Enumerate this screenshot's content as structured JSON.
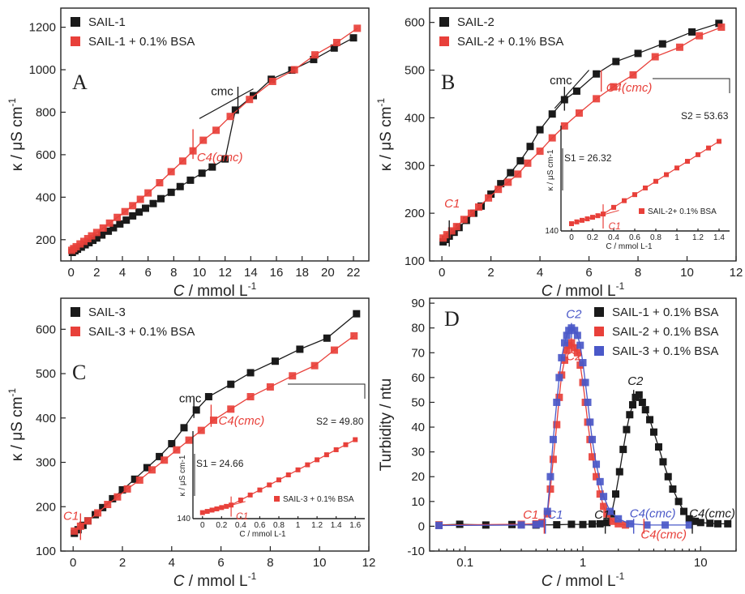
{
  "colors": {
    "black": "#1a1a1a",
    "red": "#e8403a",
    "blue": "#4a58c8",
    "axis": "#222222"
  },
  "chart_data": [
    {
      "panel": "A",
      "type": "scatter",
      "xlabel": "C / mmol L-1",
      "ylabel": "κ / μS cm-1",
      "xlim": [
        -0.8,
        23.2
      ],
      "ylim": [
        100,
        1290
      ],
      "xticks": [
        0,
        2,
        4,
        6,
        8,
        10,
        12,
        14,
        16,
        18,
        20,
        22
      ],
      "yticks": [
        200,
        400,
        600,
        800,
        1000,
        1200
      ],
      "legend": "top-left",
      "series": [
        {
          "name": "SAIL-1",
          "color": "black",
          "x": [
            0.1,
            0.3,
            0.5,
            0.8,
            1.1,
            1.4,
            1.7,
            2.0,
            2.4,
            2.9,
            3.3,
            3.8,
            4.3,
            4.8,
            5.3,
            5.8,
            6.4,
            7.0,
            7.8,
            8.5,
            9.3,
            10.2,
            11.0,
            12.0,
            12.8,
            14.2,
            15.6,
            17.2,
            18.9,
            20.5,
            22.0
          ],
          "y": [
            140,
            148,
            155,
            165,
            176,
            186,
            197,
            208,
            222,
            240,
            256,
            274,
            292,
            312,
            330,
            348,
            370,
            393,
            423,
            450,
            480,
            513,
            542,
            580,
            810,
            878,
            955,
            998,
            1048,
            1102,
            1150
          ]
        },
        {
          "name": "SAIL-1 + 0.1% BSA",
          "color": "red",
          "x": [
            0.05,
            0.2,
            0.4,
            0.7,
            1.0,
            1.3,
            1.6,
            2.0,
            2.5,
            3.0,
            3.6,
            4.2,
            4.8,
            5.4,
            6.0,
            6.9,
            7.8,
            8.7,
            9.5,
            10.3,
            11.3,
            12.4,
            13.9,
            15.7,
            17.4,
            19.0,
            20.7,
            22.3
          ],
          "y": [
            150,
            158,
            167,
            180,
            192,
            205,
            218,
            234,
            255,
            278,
            305,
            332,
            360,
            390,
            420,
            468,
            520,
            570,
            618,
            668,
            715,
            780,
            860,
            945,
            1000,
            1070,
            1128,
            1195
          ]
        }
      ],
      "annotations": [
        {
          "text": "cmc",
          "x": 13.0,
          "y": 862
        },
        {
          "text": "C4(cmc)",
          "x": 9.5,
          "y": 660
        }
      ]
    },
    {
      "panel": "B",
      "type": "scatter",
      "xlabel": "C / mmol L-1",
      "ylabel": "κ / μS cm-1",
      "xlim": [
        -0.5,
        12
      ],
      "ylim": [
        100,
        630
      ],
      "xticks": [
        0,
        2,
        4,
        6,
        8,
        10,
        12
      ],
      "yticks": [
        100,
        200,
        300,
        400,
        500,
        600
      ],
      "legend": "top-left",
      "series": [
        {
          "name": "SAIL-2",
          "color": "black",
          "x": [
            0.05,
            0.15,
            0.3,
            0.5,
            0.7,
            1.0,
            1.3,
            1.6,
            2.0,
            2.4,
            2.8,
            3.2,
            3.6,
            4.0,
            4.5,
            5.0,
            5.5,
            6.3,
            7.1,
            8.0,
            9.0,
            10.2,
            11.3
          ],
          "y": [
            140,
            145,
            152,
            160,
            170,
            185,
            200,
            215,
            240,
            262,
            285,
            310,
            340,
            375,
            408,
            438,
            456,
            492,
            518,
            535,
            555,
            580,
            598
          ]
        },
        {
          "name": "SAIL-2 + 0.1% BSA",
          "color": "red",
          "x": [
            0.05,
            0.2,
            0.4,
            0.6,
            0.9,
            1.2,
            1.5,
            1.9,
            2.3,
            2.7,
            3.1,
            3.5,
            4.0,
            4.5,
            5.0,
            5.6,
            6.3,
            7.0,
            7.8,
            8.7,
            9.7,
            10.5,
            11.4
          ],
          "y": [
            148,
            155,
            163,
            172,
            187,
            200,
            213,
            232,
            250,
            265,
            282,
            305,
            330,
            358,
            383,
            410,
            440,
            465,
            490,
            528,
            548,
            572,
            590
          ]
        }
      ],
      "annotations": [
        {
          "text": "cmc",
          "x": 5.0,
          "y": 445
        },
        {
          "text": "C4(cmc)",
          "x": 6.4,
          "y": 478
        },
        {
          "text": "C1",
          "x": 0.3,
          "y": 155
        }
      ],
      "inset": {
        "xlabel": "C / mmol L-1",
        "ylabel": "κ / μS cm-1",
        "xticks": [
          0.0,
          0.2,
          0.4,
          0.6,
          0.8,
          1.0,
          1.2,
          1.4
        ],
        "ytick_label": "140",
        "legend": "SAIL-2+ 0.1% BSA",
        "s1": "S1 = 26.32",
        "s2": "S2 = 53.63",
        "c1": "C1",
        "series": {
          "x": [
            0.0,
            0.05,
            0.1,
            0.15,
            0.2,
            0.25,
            0.3,
            0.4,
            0.5,
            0.6,
            0.7,
            0.8,
            0.9,
            1.0,
            1.1,
            1.2,
            1.3,
            1.4
          ],
          "y": [
            144,
            145.5,
            146.8,
            148,
            149.3,
            150.6,
            152,
            157.5,
            163,
            168,
            173.5,
            179,
            184.5,
            190,
            195.5,
            201,
            206.5,
            212
          ]
        }
      }
    },
    {
      "panel": "C",
      "type": "scatter",
      "xlabel": "C / mmol L-1",
      "ylabel": "κ / μS cm-1",
      "xlim": [
        -0.5,
        12
      ],
      "ylim": [
        100,
        670
      ],
      "xticks": [
        0,
        2,
        4,
        6,
        8,
        10,
        12
      ],
      "yticks": [
        100,
        200,
        300,
        400,
        500,
        600
      ],
      "legend": "top-left",
      "series": [
        {
          "name": "SAIL-3",
          "color": "black",
          "x": [
            0.05,
            0.2,
            0.4,
            0.6,
            0.9,
            1.2,
            1.6,
            2.0,
            2.5,
            3.0,
            3.5,
            4.0,
            4.5,
            5.0,
            5.5,
            6.4,
            7.2,
            8.2,
            9.2,
            10.3,
            11.5
          ],
          "y": [
            140,
            148,
            158,
            168,
            182,
            198,
            218,
            238,
            262,
            288,
            313,
            342,
            378,
            418,
            448,
            476,
            502,
            528,
            555,
            580,
            635
          ]
        },
        {
          "name": "SAIL-3 + 0.1% BSA",
          "color": "red",
          "x": [
            0.05,
            0.3,
            0.6,
            1.0,
            1.4,
            1.8,
            2.2,
            2.7,
            3.2,
            3.7,
            4.2,
            4.7,
            5.2,
            5.7,
            6.4,
            7.2,
            8.0,
            8.9,
            9.8,
            10.6,
            11.4
          ],
          "y": [
            145,
            156,
            168,
            186,
            205,
            222,
            240,
            260,
            283,
            305,
            328,
            350,
            372,
            395,
            420,
            448,
            470,
            495,
            518,
            553,
            585
          ]
        }
      ],
      "annotations": [
        {
          "text": "cmc",
          "x": 4.9,
          "y": 425
        },
        {
          "text": "C4(cmc)",
          "x": 6.2,
          "y": 405
        },
        {
          "text": "C1",
          "x": 0.05,
          "y": 165
        }
      ],
      "inset": {
        "xlabel": "C / mmol L-1",
        "ylabel": "κ / μS cm-1",
        "xticks": [
          0.0,
          0.2,
          0.4,
          0.6,
          0.8,
          1.0,
          1.2,
          1.4,
          1.6
        ],
        "ytick_label": "140",
        "legend": "SAIL-3 + 0.1% BSA",
        "s1": "S1 = 24.66",
        "s2": "S2 = 49.80",
        "c1": "C1",
        "series": {
          "x": [
            0.0,
            0.05,
            0.1,
            0.15,
            0.2,
            0.25,
            0.3,
            0.4,
            0.5,
            0.6,
            0.7,
            0.8,
            0.9,
            1.0,
            1.1,
            1.2,
            1.3,
            1.4,
            1.5,
            1.6
          ],
          "y": [
            144,
            145.2,
            146.5,
            147.7,
            149,
            150.2,
            151.5,
            156.5,
            161.5,
            166.5,
            171.5,
            176.5,
            181.5,
            186.5,
            191.5,
            196.5,
            201.5,
            206.5,
            211.5,
            216.5
          ]
        }
      }
    },
    {
      "panel": "D",
      "type": "scatter",
      "xlabel": "C / mmol L-1",
      "ylabel": "Turbidity / ntu",
      "xscale": "log",
      "xlim": [
        0.05,
        20
      ],
      "ylim": [
        -10,
        92
      ],
      "xticks": [
        0.1,
        1,
        10
      ],
      "yticks": [
        -10,
        0,
        10,
        20,
        30,
        40,
        50,
        60,
        70,
        80,
        90
      ],
      "legend": "top-right",
      "series": [
        {
          "name": "SAIL-1 + 0.1% BSA",
          "color": "black",
          "x": [
            0.06,
            0.09,
            0.15,
            0.25,
            0.4,
            0.6,
            0.8,
            1.0,
            1.2,
            1.4,
            1.6,
            1.75,
            1.9,
            2.05,
            2.2,
            2.35,
            2.5,
            2.65,
            2.8,
            3.0,
            3.2,
            3.4,
            3.7,
            4.0,
            4.4,
            4.8,
            5.3,
            5.8,
            6.5,
            7.2,
            8.0,
            9.0,
            10.0,
            12.0,
            14.0,
            17.0
          ],
          "y": [
            0.5,
            0.8,
            0.5,
            0.7,
            0.5,
            0.6,
            0.8,
            0.7,
            0.9,
            1.0,
            1.5,
            5,
            13,
            22,
            31,
            39,
            45,
            49,
            52,
            53,
            50,
            47,
            43,
            38,
            32,
            26,
            20,
            15,
            10,
            6,
            3,
            2,
            1.5,
            1.2,
            1.0,
            1.0
          ]
        },
        {
          "name": "SAIL-2 + 0.1% BSA",
          "color": "red",
          "x": [
            0.06,
            0.3,
            0.4,
            0.45,
            0.5,
            0.53,
            0.56,
            0.6,
            0.63,
            0.66,
            0.7,
            0.73,
            0.76,
            0.8,
            0.85,
            0.9,
            0.95,
            1.0,
            1.05,
            1.1,
            1.15,
            1.2,
            1.3,
            1.4,
            1.5,
            1.6,
            1.8,
            2.0,
            2.3
          ],
          "y": [
            0.5,
            0.8,
            1.0,
            1.5,
            5,
            15,
            27,
            41,
            52,
            61,
            67,
            71,
            73,
            74,
            72,
            70,
            65,
            58,
            50,
            42,
            35,
            28,
            20,
            13,
            8,
            5,
            2,
            1,
            0.5
          ]
        },
        {
          "name": "SAIL-3 + 0.1% BSA",
          "color": "blue",
          "x": [
            0.06,
            0.3,
            0.4,
            0.45,
            0.5,
            0.53,
            0.56,
            0.6,
            0.63,
            0.66,
            0.7,
            0.73,
            0.76,
            0.8,
            0.85,
            0.9,
            0.95,
            1.0,
            1.05,
            1.1,
            1.15,
            1.2,
            1.3,
            1.4,
            1.5,
            1.7,
            2.0,
            2.5,
            3.5,
            5.0,
            8.0
          ],
          "y": [
            0.3,
            0.5,
            0.7,
            1.0,
            6,
            20,
            35,
            50,
            60,
            68,
            74,
            77,
            79,
            80,
            79,
            77,
            73,
            66,
            58,
            50,
            42,
            35,
            25,
            18,
            12,
            6,
            3,
            1,
            0.5,
            0.5,
            0.5
          ]
        }
      ],
      "annotations": [
        {
          "text": "C2",
          "x": 0.8,
          "y": 84,
          "color": "blue"
        },
        {
          "text": "C2",
          "x": 0.8,
          "y": 67,
          "color": "red"
        },
        {
          "text": "C2",
          "x": 2.9,
          "y": 58,
          "color": "black"
        },
        {
          "text": "C1",
          "x": 0.42,
          "y": 4,
          "color": "red"
        },
        {
          "text": "C1",
          "x": 0.55,
          "y": 3,
          "color": "blue"
        },
        {
          "text": "C1",
          "x": 1.55,
          "y": 4,
          "color": "black"
        },
        {
          "text": "C4(cmc)",
          "x": 2.65,
          "y": 5,
          "color": "blue"
        },
        {
          "text": "C4(cmc)",
          "x": 3.5,
          "y": -4,
          "color": "red"
        },
        {
          "text": "C4(cmc)",
          "x": 9.0,
          "y": 4,
          "color": "black"
        }
      ]
    }
  ],
  "panels": {
    "A": {
      "letter": "A",
      "legend": [
        "SAIL-1",
        "SAIL-1 + 0.1% BSA"
      ],
      "ylabel": "κ / μS cm",
      "ylabel_sup": "-1",
      "xlabel_c": "C",
      "xlabel_rest": " / mmol L",
      "xlabel_sup": "-1"
    },
    "B": {
      "letter": "B",
      "legend": [
        "SAIL-2",
        "SAIL-2 + 0.1% BSA"
      ],
      "ylabel": "κ / μS cm",
      "ylabel_sup": "-1",
      "xlabel_c": "C",
      "xlabel_rest": " / mmol L",
      "xlabel_sup": "-1"
    },
    "C": {
      "letter": "C",
      "legend": [
        "SAIL-3",
        "SAIL-3 + 0.1% BSA"
      ],
      "ylabel": "κ / μS cm",
      "ylabel_sup": "-1",
      "xlabel_c": "C",
      "xlabel_rest": " / mmol L",
      "xlabel_sup": "-1"
    },
    "D": {
      "letter": "D",
      "legend": [
        "SAIL-1 + 0.1% BSA",
        "SAIL-2 + 0.1% BSA",
        "SAIL-3 + 0.1% BSA"
      ],
      "ylabel": "Turbidity / ntu",
      "xlabel_c": "C",
      "xlabel_rest": " / mmol L",
      "xlabel_sup": "-1"
    }
  }
}
